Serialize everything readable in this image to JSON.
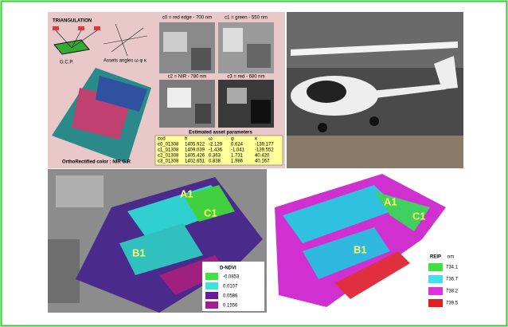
{
  "top_left": {
    "triangulation": "TRIANGULATION",
    "gcp": "G.C.P.",
    "angles": "Assets angles ω φ κ",
    "bands": [
      "c0 = red edge - 700 nm",
      "c1 = green - 550 nm",
      "c2 = NIR - 780 nm",
      "c3 = red - 680 nm"
    ],
    "table": {
      "title": "Estimated asset parameters",
      "header": [
        "cod",
        "h",
        "ω",
        "φ",
        "κ"
      ],
      "rows": [
        [
          "c0_01308",
          "1405.922",
          "-2.129",
          "0.624",
          "-139.177"
        ],
        [
          "c1_01308",
          "1409.039",
          "-1.436",
          "-1.041",
          "-139.552"
        ],
        [
          "c2_01308",
          "1405.426",
          "0.363",
          "1.731",
          "40.420"
        ],
        [
          "c3_01308",
          "1402.651",
          "0.838",
          "1.986",
          "40.167"
        ]
      ]
    },
    "ortho": "OrthoRectified color : NIR G R"
  },
  "bottom_left": {
    "labels": [
      "A1",
      "C1",
      "B1"
    ],
    "legend": {
      "title": "D-NDVI",
      "values": [
        "-0.0853",
        "0.0107",
        "0.0586",
        "0.1556"
      ]
    }
  },
  "bottom_right": {
    "labels": [
      "A1",
      "C1",
      "B1"
    ],
    "legend": {
      "title": "REIP",
      "unit": "nm",
      "values": [
        "734.1",
        "736.7",
        "738.2",
        "739.5"
      ]
    }
  }
}
